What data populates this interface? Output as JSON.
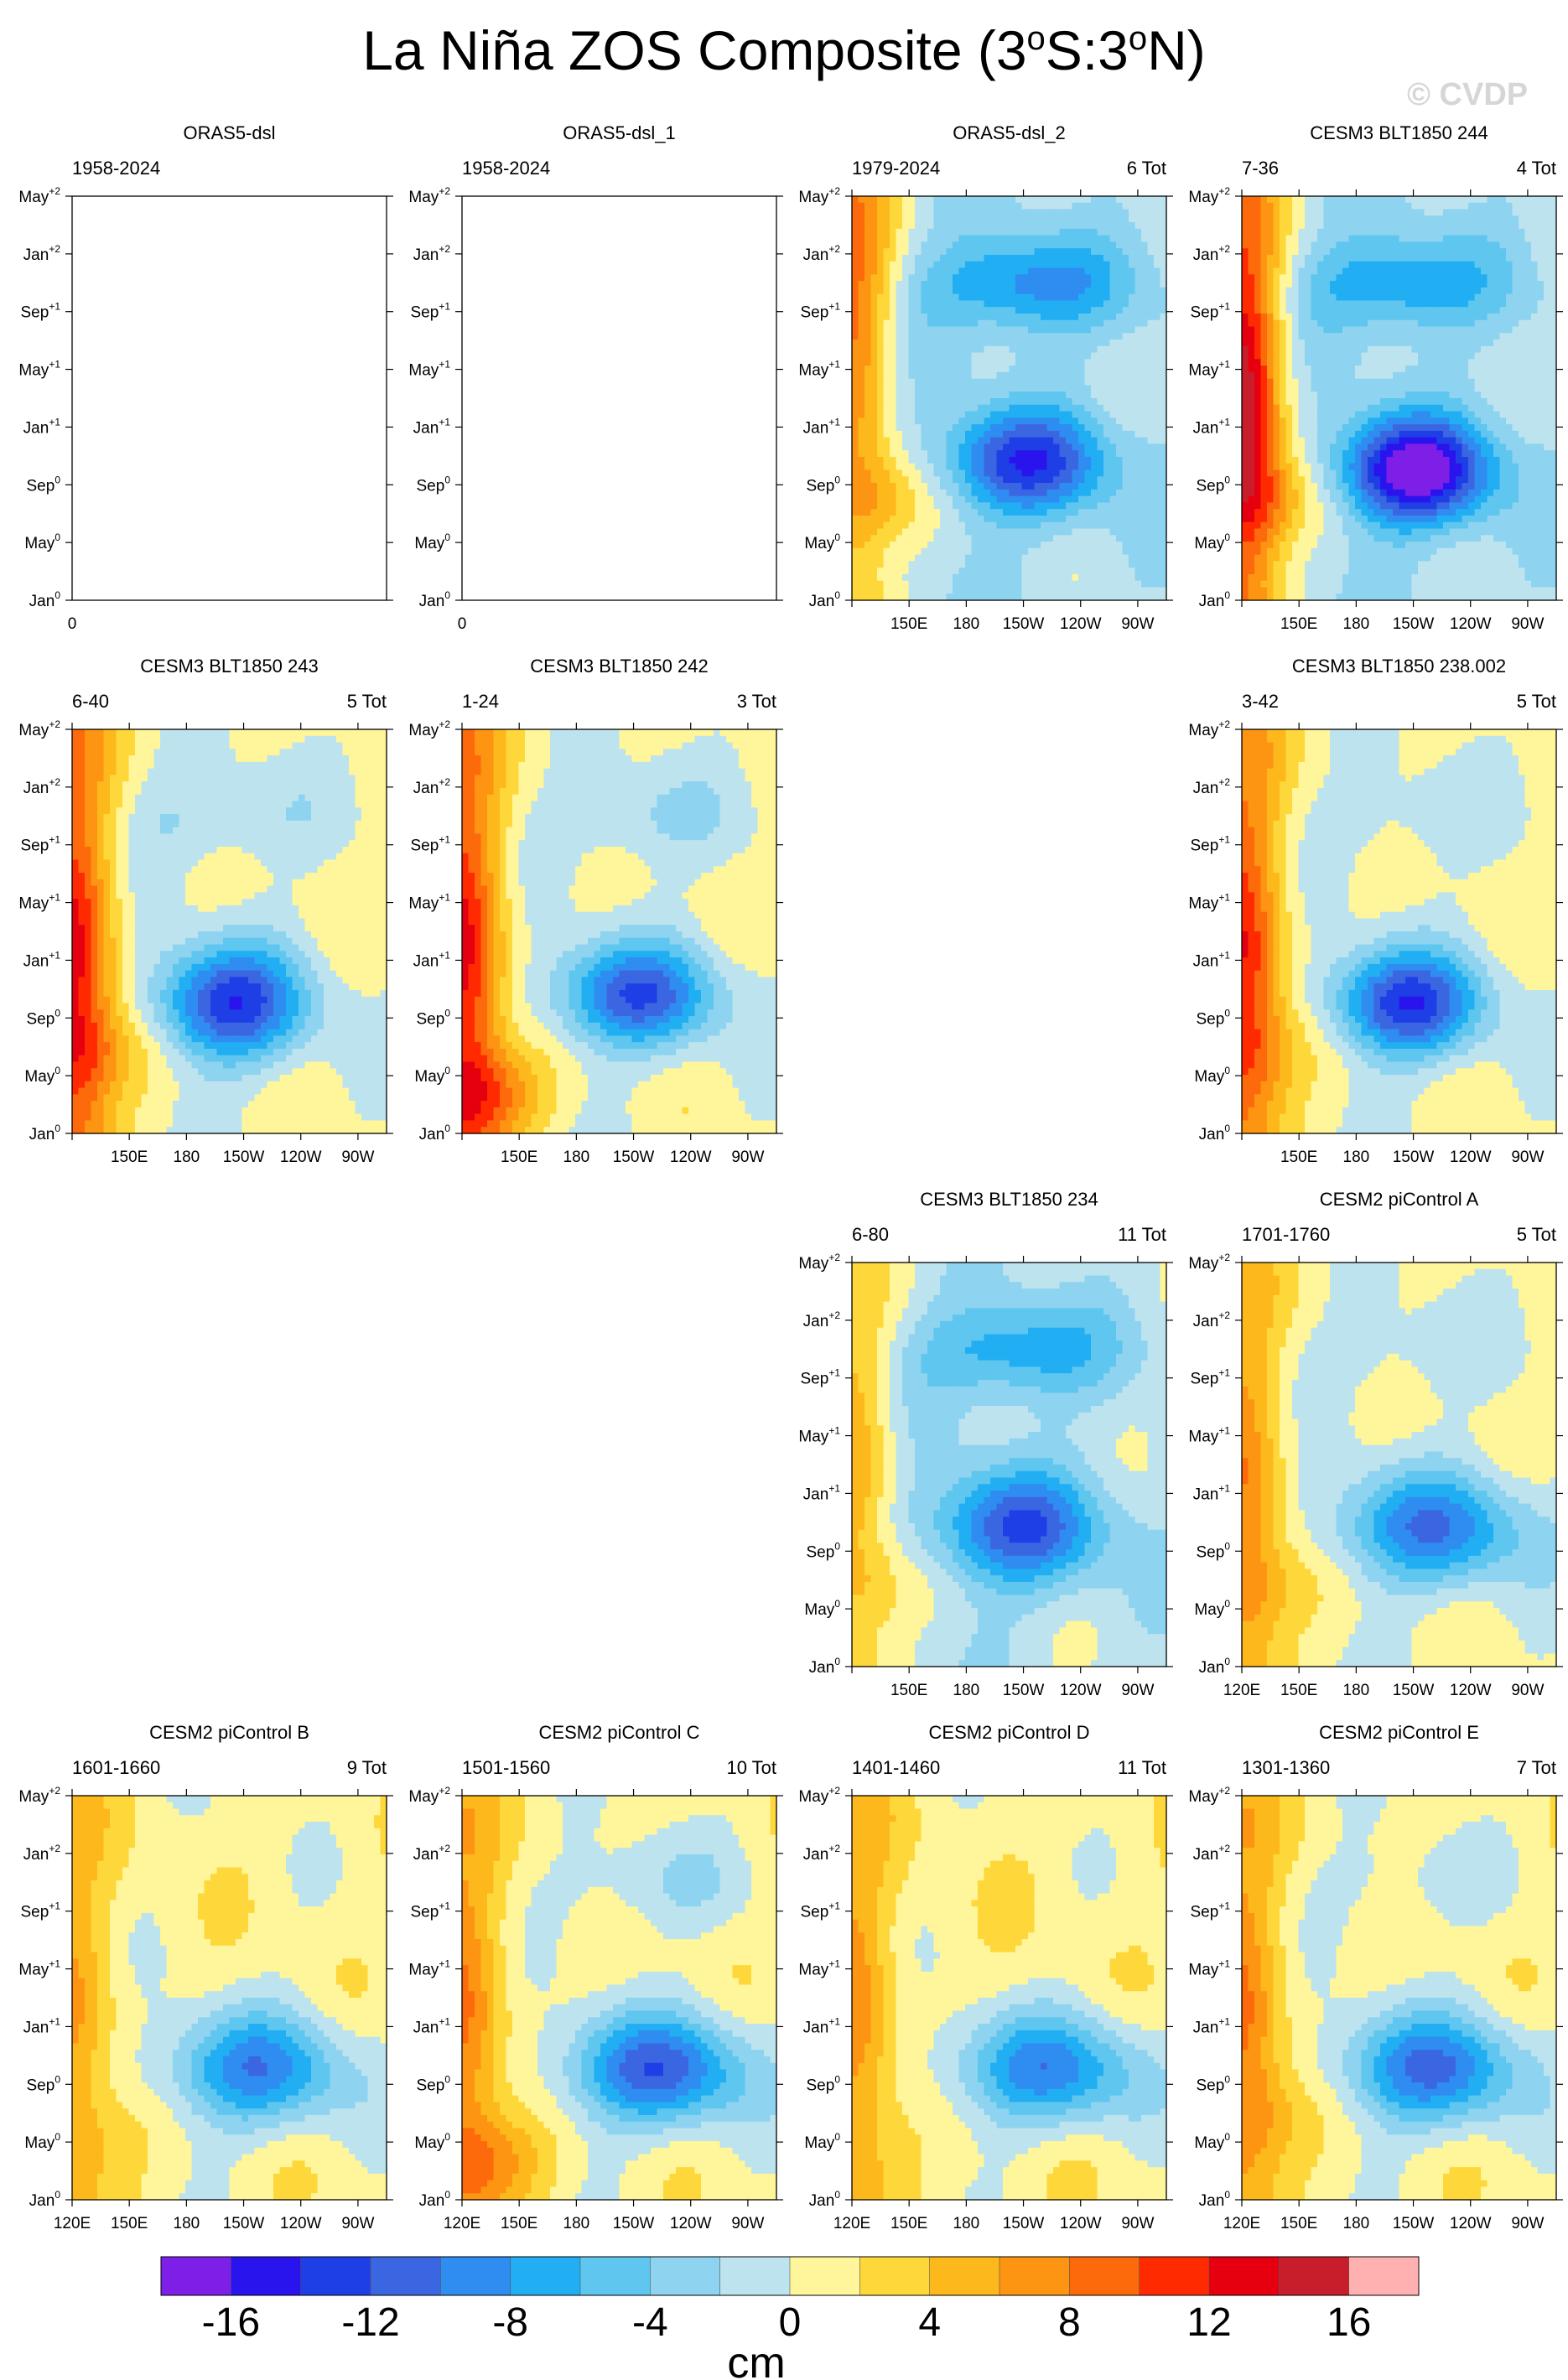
{
  "figure": {
    "title_prefix": "La Niña ZOS Composite (3",
    "title_deg1": "o",
    "title_mid": "S:3",
    "title_deg2": "o",
    "title_suffix": "N)",
    "watermark": "© CVDP",
    "colorbar_unit": "cm"
  },
  "colors": {
    "levels": [
      "#7e1fe8",
      "#2a14ee",
      "#1f3fe6",
      "#3b66e2",
      "#2f8cf0",
      "#21aef2",
      "#5ec6ef",
      "#8ed3ef",
      "#bde3ef",
      "#fff59a",
      "#fed83a",
      "#fdb81c",
      "#fd9412",
      "#fd6a0b",
      "#ff2a00",
      "#e6000f",
      "#c81e2c",
      "#ffb0b0"
    ]
  },
  "chart_data": {
    "type": "heatmap",
    "variable": "ZOS",
    "colorbar": {
      "levels": [
        -18,
        -16,
        -14,
        -12,
        -10,
        -8,
        -6,
        -4,
        -2,
        0,
        2,
        4,
        6,
        8,
        10,
        12,
        14,
        16,
        18
      ],
      "tick_labels": [
        "-16",
        "-12",
        "-8",
        "-4",
        "0",
        "4",
        "8",
        "12",
        "16"
      ],
      "tick_values": [
        -16,
        -12,
        -8,
        -4,
        0,
        4,
        8,
        12,
        16
      ]
    },
    "y_ticks": [
      {
        "base": "May",
        "sup": "+2"
      },
      {
        "base": "Jan",
        "sup": "+2"
      },
      {
        "base": "Sep",
        "sup": "+1"
      },
      {
        "base": "May",
        "sup": "+1"
      },
      {
        "base": "Jan",
        "sup": "+1"
      },
      {
        "base": "Sep",
        "sup": "0"
      },
      {
        "base": "May",
        "sup": "0"
      },
      {
        "base": "Jan",
        "sup": "0"
      }
    ],
    "x_ticks_full": [
      "120E",
      "150E",
      "180",
      "150W",
      "120W",
      "90W"
    ],
    "x_ticks_partial": [
      "150E",
      "180",
      "150W",
      "120W",
      "90W"
    ],
    "panels": [
      {
        "id": "p1",
        "title": "ORAS5-dsl",
        "left": "1958-2024",
        "right": "",
        "empty": true,
        "empty_label": "0",
        "pattern": {
          "type": "empty"
        }
      },
      {
        "id": "p2",
        "title": "ORAS5-dsl_1",
        "left": "1958-2024",
        "right": "",
        "empty": true,
        "empty_label": "0",
        "pattern": {
          "type": "empty"
        }
      },
      {
        "id": "p3",
        "title": "ORAS5-dsl_2",
        "left": "1979-2024",
        "right": "6 Tot",
        "xfull": false,
        "pattern": {
          "w": 10,
          "wt": 0.2,
          "c": -12,
          "cx": 0.55,
          "cy": 0.66,
          "sx": 0.26,
          "sy": 0.13,
          "s": -8,
          "sxx": 0.55,
          "sy2": 0.22,
          "base": -1.5,
          "bw": 5,
          "bwt": 0.75
        }
      },
      {
        "id": "p4",
        "title": "CESM3 BLT1850 244",
        "left": "7-36",
        "right": "4 Tot",
        "xfull": false,
        "pattern": {
          "w": 16,
          "wt": 0.5,
          "c": -17,
          "cx": 0.55,
          "cy": 0.68,
          "sx": 0.24,
          "sy": 0.13,
          "s": -7,
          "sxx": 0.5,
          "sy2": 0.22,
          "base": -1.5,
          "bw": 5,
          "bwt": 0.75
        }
      },
      {
        "id": "p5",
        "title": "CESM3 BLT1850 243",
        "left": "6-40",
        "right": "5 Tot",
        "xfull": false,
        "pattern": {
          "w": 12,
          "wt": 0.6,
          "c": -14,
          "cx": 0.5,
          "cy": 0.68,
          "sx": 0.24,
          "sy": 0.14,
          "s": -3,
          "sxx": 0.45,
          "sy2": 0.22,
          "base": 0.5,
          "bw": 4,
          "bwt": 0.8
        }
      },
      {
        "id": "p6",
        "title": "CESM3 BLT1850 242",
        "left": "1-24",
        "right": "3 Tot",
        "xfull": false,
        "pattern": {
          "w": 12,
          "wt": 0.6,
          "c": -12,
          "cx": 0.55,
          "cy": 0.66,
          "sx": 0.26,
          "sy": 0.13,
          "s": -3,
          "sxx": 0.55,
          "sy2": 0.22,
          "base": 0.5,
          "bw": 6,
          "bwt": 0.9
        }
      },
      {
        "id": "p7",
        "title": "CESM3 BLT1850 238.002",
        "left": "3-42",
        "right": "5 Tot",
        "xfull": false,
        "pattern": {
          "w": 11,
          "wt": 0.6,
          "c": -14,
          "cx": 0.52,
          "cy": 0.68,
          "sx": 0.24,
          "sy": 0.13,
          "s": -2,
          "sxx": 0.5,
          "sy2": 0.22,
          "base": 0.5,
          "bw": 3,
          "bwt": 0.8
        }
      },
      {
        "id": "p8",
        "title": "CESM3 BLT1850 234",
        "left": "6-80",
        "right": "11 Tot",
        "xfull": false,
        "pattern": {
          "w": 6,
          "wt": 0.5,
          "c": -11,
          "cx": 0.52,
          "cy": 0.66,
          "sx": 0.27,
          "sy": 0.14,
          "s": -7,
          "sxx": 0.52,
          "sy2": 0.22,
          "base": -1,
          "bw": 3,
          "bwt": 0.8
        }
      },
      {
        "id": "p9",
        "title": "CESM2 piControl A",
        "left": "1701-1760",
        "right": "5 Tot",
        "xfull": true,
        "pattern": {
          "w": 7,
          "wt": 0.6,
          "c": -10,
          "cx": 0.6,
          "cy": 0.66,
          "sx": 0.32,
          "sy": 0.14,
          "s": -2,
          "sxx": 0.5,
          "sy2": 0.22,
          "base": 0.5,
          "bw": 3,
          "bwt": 0.8
        }
      },
      {
        "id": "p10",
        "title": "CESM2 piControl B",
        "left": "1601-1660",
        "right": "9 Tot",
        "xfull": true,
        "pattern": {
          "w": 5,
          "wt": 0.6,
          "c": -10,
          "cx": 0.58,
          "cy": 0.68,
          "sx": 0.3,
          "sy": 0.14,
          "s": 0,
          "sxx": 0.5,
          "sy2": 0.22,
          "base": 1,
          "bw": 2,
          "bwt": 0.85
        }
      },
      {
        "id": "p11",
        "title": "CESM2 piControl C",
        "left": "1501-1560",
        "right": "10 Tot",
        "xfull": true,
        "pattern": {
          "w": 7,
          "wt": 0.6,
          "c": -12,
          "cx": 0.62,
          "cy": 0.68,
          "sx": 0.3,
          "sy": 0.14,
          "s": -3,
          "sxx": 0.6,
          "sy2": 0.22,
          "base": 1,
          "bw": 5,
          "bwt": 0.9
        }
      },
      {
        "id": "p12",
        "title": "CESM2 piControl D",
        "left": "1401-1460",
        "right": "11 Tot",
        "xfull": true,
        "pattern": {
          "w": 6,
          "wt": 0.6,
          "c": -10,
          "cx": 0.62,
          "cy": 0.68,
          "sx": 0.32,
          "sy": 0.14,
          "s": 0,
          "sxx": 0.5,
          "sy2": 0.22,
          "base": 1.2,
          "bw": 1,
          "bwt": 0.85
        }
      },
      {
        "id": "p13",
        "title": "CESM2 piControl E",
        "left": "1301-1360",
        "right": "7 Tot",
        "xfull": true,
        "pattern": {
          "w": 7,
          "wt": 0.6,
          "c": -11,
          "cx": 0.6,
          "cy": 0.68,
          "sx": 0.3,
          "sy": 0.14,
          "s": -2,
          "sxx": 0.5,
          "sy2": 0.22,
          "base": 1,
          "bw": 3,
          "bwt": 0.8
        }
      }
    ]
  }
}
